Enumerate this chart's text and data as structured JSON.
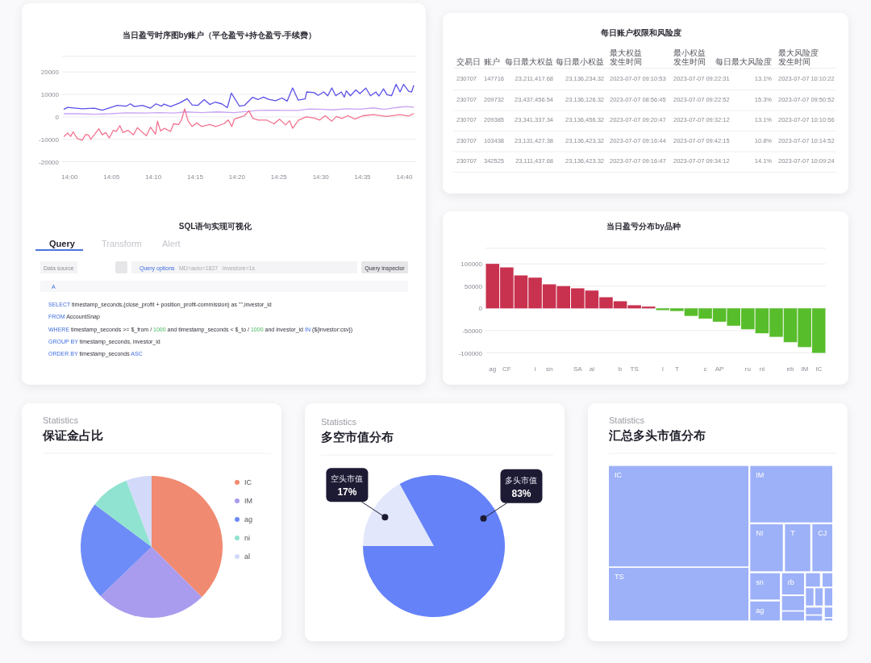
{
  "chart_data": [
    {
      "type": "line",
      "title": "当日盈亏时序图by账户（平仓盈亏+持仓盈亏-手续费）",
      "xlim": [
        13.985,
        14.69
      ],
      "ylim": [
        -20000,
        27000
      ],
      "xticks": [
        {
          "value": 14,
          "label": "14:00"
        },
        {
          "value": 14.0833,
          "label": "14:05"
        },
        {
          "value": 14.1667,
          "label": "14:10"
        },
        {
          "value": 14.25,
          "label": "14:15"
        },
        {
          "value": 14.3333,
          "label": "14:20"
        },
        {
          "value": 14.4167,
          "label": "14:25"
        },
        {
          "value": 14.5,
          "label": "14:30"
        },
        {
          "value": 14.5833,
          "label": "14:35"
        },
        {
          "value": 14.6667,
          "label": "14:40"
        }
      ],
      "yticks": [
        -20000,
        -10000,
        0,
        10000,
        20000
      ],
      "grid": "y",
      "series": [
        {
          "color": "#5b50e8",
          "x": [
            13.989,
            13.996,
            14.025,
            14.049,
            14.065,
            14.095,
            14.113,
            14.121,
            14.129,
            14.145,
            14.161,
            14.172,
            14.183,
            14.188,
            14.201,
            14.22,
            14.234,
            14.244,
            14.255,
            14.268,
            14.279,
            14.29,
            14.303,
            14.314,
            14.322,
            14.338,
            14.348,
            14.364,
            14.375,
            14.386,
            14.396,
            14.41,
            14.423,
            14.433,
            14.444,
            14.455,
            14.469,
            14.472,
            14.487,
            14.495,
            14.506,
            14.514,
            14.522,
            14.53,
            14.541,
            14.547,
            14.551,
            14.559,
            14.57,
            14.578,
            14.59,
            14.599,
            14.61,
            14.616,
            14.625,
            14.632,
            14.641,
            14.65,
            14.658,
            14.665,
            14.675,
            14.681,
            14.685
          ],
          "values": [
            3400,
            4200,
            3600,
            3900,
            3000,
            5100,
            4800,
            5800,
            4600,
            5100,
            3900,
            5800,
            4800,
            5700,
            4600,
            6300,
            8100,
            5300,
            5100,
            7700,
            5500,
            6600,
            5800,
            4100,
            10600,
            4800,
            5100,
            8700,
            7700,
            8800,
            7800,
            7200,
            8400,
            7000,
            12900,
            7500,
            8000,
            11100,
            10800,
            9600,
            11100,
            9400,
            12900,
            9400,
            11100,
            8800,
            11600,
            9400,
            12000,
            10400,
            12800,
            9400,
            11100,
            9300,
            12500,
            9900,
            9400,
            14500,
            11100,
            14500,
            11400,
            11100,
            13900
          ]
        },
        {
          "color": "#c9a3f3",
          "x": [
            13.989,
            14.017,
            14.049,
            14.081,
            14.113,
            14.151,
            14.177,
            14.209,
            14.231,
            14.263,
            14.295,
            14.327,
            14.354,
            14.375,
            14.402,
            14.428,
            14.455,
            14.476,
            14.498,
            14.525,
            14.551,
            14.578,
            14.605,
            14.626,
            14.65,
            14.669,
            14.685
          ],
          "values": [
            1400,
            1400,
            1200,
            1400,
            1800,
            1700,
            1900,
            1700,
            2200,
            1900,
            2200,
            1900,
            2400,
            2900,
            3000,
            2900,
            2900,
            3500,
            3400,
            3100,
            3600,
            3400,
            4000,
            3300,
            4100,
            4600,
            4300
          ]
        },
        {
          "color": "#f2728f",
          "x": [
            13.989,
            13.996,
            14.002,
            14.007,
            14.015,
            14.025,
            14.032,
            14.038,
            14.042,
            14.05,
            14.058,
            14.065,
            14.072,
            14.079,
            14.087,
            14.093,
            14.1,
            14.106,
            14.116,
            14.127,
            14.135,
            14.145,
            14.153,
            14.161,
            14.171,
            14.175,
            14.181,
            14.189,
            14.201,
            14.207,
            14.217,
            14.223,
            14.229,
            14.236,
            14.244,
            14.253,
            14.263,
            14.279,
            14.291,
            14.307,
            14.316,
            14.323,
            14.328,
            14.339,
            14.348,
            14.357,
            14.365,
            14.376,
            14.392,
            14.407,
            14.418,
            14.43,
            14.438,
            14.444,
            14.456,
            14.471,
            14.487,
            14.498,
            14.509,
            14.522,
            14.531,
            14.542,
            14.554,
            14.568,
            14.584,
            14.605,
            14.631,
            14.658,
            14.675,
            14.685
          ],
          "values": [
            -8700,
            -7200,
            -8700,
            -6700,
            -9600,
            -10400,
            -7800,
            -8200,
            -10000,
            -7700,
            -5300,
            -8000,
            -7000,
            -9400,
            -6000,
            -6500,
            -3900,
            -7000,
            -6000,
            -8000,
            -4800,
            -7000,
            -8400,
            -4600,
            -7700,
            -1900,
            -6300,
            -5100,
            -6500,
            -3100,
            -3400,
            -1200,
            3600,
            -1900,
            -4300,
            -2700,
            -4300,
            -3400,
            -4300,
            -3100,
            -1400,
            -4300,
            -1000,
            -200,
            500,
            2700,
            -700,
            -1400,
            -1400,
            -3100,
            -1000,
            -3600,
            -1700,
            -5100,
            -1400,
            0,
            -500,
            -1400,
            500,
            -1900,
            200,
            -700,
            500,
            -1000,
            500,
            1000,
            200,
            1000,
            400,
            1400
          ]
        }
      ]
    },
    {
      "type": "other",
      "title": "每日账户权限和风险度",
      "categories": [
        "交易日",
        "账户",
        "每日最大权益",
        "每日最小权益",
        "最大权益发生时间",
        "最小权益发生时间",
        "每日最大风险度",
        "最大风险度发生时间"
      ],
      "cell_labels": [
        [
          "230707",
          "147716",
          "23,211,417.68",
          "23,136,234.32",
          "2023-07-07 09:10:53",
          "2023-07-07 09:22:31",
          "13.1%",
          "2023-07-07 10:10:22"
        ],
        [
          "230707",
          "209732",
          "23,437,456.54",
          "23,136,126.32",
          "2023-07-07 08:56:45",
          "2023-07-07 09:22:52",
          "15.3%",
          "2023-07-07 09:50:52"
        ],
        [
          "230707",
          "209385",
          "23,341,337.34",
          "23,136,456.32",
          "2023-07-07 09:20:47",
          "2023-07-07 09:32:12",
          "13.1%",
          "2023-07-07 10:10:56"
        ],
        [
          "230707",
          "103438",
          "23,131,427.38",
          "23,136,423.32",
          "2023-07-07 09:16:44",
          "2023-07-07 09:42:15",
          "10.8%",
          "2023-07-07 10:14:52"
        ],
        [
          "230707",
          "342525",
          "23,111,437.68",
          "23,136,423.32",
          "2023-07-07 09:16:47",
          "2023-07-07 09:34:12",
          "14.1%",
          "2023-07-07 10:09:24"
        ]
      ]
    },
    {
      "type": "other",
      "title": "SQL语句实现可视化",
      "annotations": [
        "Query",
        "Transform",
        "Alert",
        "Data source",
        "Query options",
        "MD=auto=1827",
        "investore=1s",
        "Query inspector",
        "A",
        "SELECT timestamp_seconds,(close_profit + position_profit-commission)  as \"\",investor_id",
        "FROM AccountSnap",
        "WHERE timestamp_seconds >= $_from / 1000 and timestamp_seconds < $_to / 1000 and investor_id IN (${investor:csv})",
        "GROUP BY timestamp_seconds, investor_id",
        "ORDER BY timestamp_seconds ASC"
      ]
    },
    {
      "type": "bar",
      "title": "当日盈亏分布by品种",
      "categories": [
        "ag",
        "CF",
        null,
        "i",
        "sn",
        null,
        "SA",
        "ai",
        null,
        "b",
        "TS",
        null,
        "l",
        "T",
        null,
        "c",
        "AP",
        null,
        "ru",
        "ni",
        null,
        "eb",
        "IM",
        "IC"
      ],
      "values": [
        100000,
        92000,
        74000,
        69000,
        54000,
        50000,
        45000,
        40000,
        25000,
        16000,
        7000,
        4000,
        -4000,
        -6000,
        -17000,
        -23000,
        -30000,
        -39000,
        -47000,
        -56000,
        -64000,
        -76000,
        -87000,
        -100000
      ],
      "colors": [
        "#c8324f",
        "#c8324f",
        "#c8324f",
        "#c8324f",
        "#c8324f",
        "#c8324f",
        "#c8324f",
        "#c8324f",
        "#c8324f",
        "#c8324f",
        "#c8324f",
        "#c8324f",
        "#58bd2b",
        "#58bd2b",
        "#58bd2b",
        "#58bd2b",
        "#58bd2b",
        "#58bd2b",
        "#58bd2b",
        "#58bd2b",
        "#58bd2b",
        "#58bd2b",
        "#58bd2b",
        "#58bd2b"
      ],
      "ylim": [
        -100000,
        135000
      ],
      "yticks": [
        -100000,
        -50000,
        0,
        50000,
        100000
      ],
      "grid": "y"
    },
    {
      "type": "pie",
      "subtitle": "Statistics",
      "title": "保证金占比",
      "categories": [
        "IC",
        "IM",
        "ag",
        "ni",
        "al"
      ],
      "values": [
        37.5,
        25.3,
        22.4,
        9.0,
        5.8
      ],
      "colors": [
        "#f08a70",
        "#a99bee",
        "#6d8cf7",
        "#90e3d0",
        "#d3daf9"
      ],
      "legend": "right"
    },
    {
      "type": "pie",
      "subtitle": "Statistics",
      "title": "多空市值分布",
      "categories": [
        "空头市值",
        "多头市值"
      ],
      "values": [
        17,
        83
      ],
      "value_labels": [
        "17%",
        "83%"
      ],
      "colors": [
        "#e2e7fb",
        "#6582f8"
      ]
    },
    {
      "type": "other",
      "subtitle": "Statistics",
      "title": "汇总多头市值分布",
      "categories": [
        "IC",
        "TS",
        "IM",
        "NI",
        "T",
        "CJ",
        "sn",
        "ag",
        "rb",
        null,
        null,
        null,
        null,
        null,
        null,
        null,
        null,
        null,
        null,
        null
      ],
      "color": "#9db1f8"
    }
  ]
}
